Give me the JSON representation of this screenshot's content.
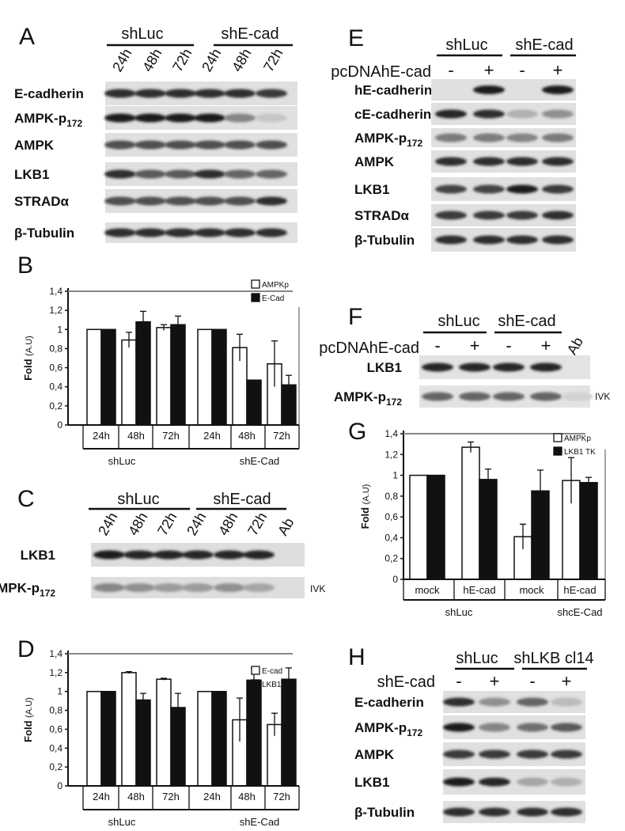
{
  "panels": {
    "A": {
      "letter": "A",
      "groups": [
        "shLuc",
        "shE-cad"
      ],
      "timepoints": [
        "24h",
        "48h",
        "72h",
        "24h",
        "48h",
        "72h"
      ],
      "rows": [
        {
          "label": "E-cadherin",
          "intensity": [
            0.85,
            0.85,
            0.85,
            0.85,
            0.85,
            0.8
          ]
        },
        {
          "label": "AMPK-p",
          "sub": "172",
          "intensity": [
            0.95,
            0.95,
            0.95,
            0.95,
            0.45,
            0.15
          ]
        },
        {
          "label": "AMPK",
          "intensity": [
            0.7,
            0.7,
            0.7,
            0.7,
            0.7,
            0.7
          ]
        },
        {
          "label": "LKB1",
          "intensity": [
            0.85,
            0.65,
            0.65,
            0.85,
            0.6,
            0.6
          ]
        },
        {
          "label": "STRADα",
          "intensity": [
            0.7,
            0.7,
            0.7,
            0.7,
            0.7,
            0.85
          ]
        },
        {
          "label": "β-Tubulin",
          "intensity": [
            0.85,
            0.85,
            0.85,
            0.85,
            0.85,
            0.85
          ]
        }
      ]
    },
    "C": {
      "letter": "C",
      "groups": [
        "shLuc",
        "shE-cad"
      ],
      "timepoints": [
        "24h",
        "48h",
        "72h",
        "24h",
        "48h",
        "72h",
        "Ab"
      ],
      "rows": [
        {
          "label": "LKB1",
          "intensity": [
            0.95,
            0.9,
            0.9,
            0.9,
            0.9,
            0.9,
            0
          ]
        },
        {
          "label": "AMPK-p",
          "sub": "172",
          "intensity": [
            0.45,
            0.4,
            0.35,
            0.35,
            0.4,
            0.3,
            0
          ]
        }
      ],
      "side_label": "IVK"
    },
    "E": {
      "letter": "E",
      "groups": [
        "shLuc",
        "shE-cad"
      ],
      "treatment": "pcDNAhE-cad",
      "signs": [
        "-",
        "+",
        "-",
        "+"
      ],
      "rows": [
        {
          "label": "hE-cadherin",
          "intensity": [
            0,
            0.95,
            0,
            0.95
          ]
        },
        {
          "label": "cE-cadherin",
          "intensity": [
            0.9,
            0.85,
            0.25,
            0.4
          ]
        },
        {
          "label": "AMPK-p",
          "sub": "172",
          "intensity": [
            0.5,
            0.5,
            0.45,
            0.5
          ]
        },
        {
          "label": "AMPK",
          "intensity": [
            0.85,
            0.85,
            0.85,
            0.85
          ]
        },
        {
          "label": "LKB1",
          "intensity": [
            0.75,
            0.75,
            0.95,
            0.8
          ]
        },
        {
          "label": "STRADα",
          "intensity": [
            0.8,
            0.8,
            0.8,
            0.85
          ]
        },
        {
          "label": "β-Tubulin",
          "intensity": [
            0.85,
            0.85,
            0.85,
            0.85
          ]
        }
      ]
    },
    "F": {
      "letter": "F",
      "groups": [
        "shLuc",
        "shE-cad"
      ],
      "treatment": "pcDNAhE-cad",
      "signs": [
        "-",
        "+",
        "-",
        "+"
      ],
      "ab_label": "Ab",
      "rows": [
        {
          "label": "LKB1",
          "intensity": [
            0.9,
            0.9,
            0.9,
            0.9,
            0
          ]
        },
        {
          "label": "AMPK-p",
          "sub": "172",
          "intensity": [
            0.6,
            0.6,
            0.6,
            0.6,
            0.1
          ]
        }
      ],
      "side_label": "IVK"
    },
    "H": {
      "letter": "H",
      "groups": [
        "shLuc",
        "shLKB cl14"
      ],
      "treatment": "shE-cad",
      "signs": [
        "-",
        "+",
        "-",
        "+"
      ],
      "rows": [
        {
          "label": "E-cadherin",
          "intensity": [
            0.85,
            0.4,
            0.6,
            0.2
          ]
        },
        {
          "label": "AMPK-p",
          "sub": "172",
          "intensity": [
            0.95,
            0.45,
            0.55,
            0.65
          ]
        },
        {
          "label": "AMPK",
          "intensity": [
            0.8,
            0.8,
            0.8,
            0.8
          ]
        },
        {
          "label": "LKB1",
          "intensity": [
            0.95,
            0.9,
            0.3,
            0.25
          ]
        },
        {
          "label": "β-Tubulin",
          "intensity": [
            0.85,
            0.85,
            0.85,
            0.85
          ]
        }
      ]
    }
  },
  "chart_data": [
    {
      "panel": "B",
      "type": "bar",
      "ylabel": "Fold (A.U)",
      "ylim": [
        0,
        1.4
      ],
      "yticks": [
        "0",
        "0,2",
        "0,4",
        "0,6",
        "0,8",
        "1",
        "1,2",
        "1,4"
      ],
      "categories": [
        "24h",
        "48h",
        "72h",
        "24h",
        "48h",
        "72h"
      ],
      "groups": [
        "shLuc",
        "shE-Cad"
      ],
      "series": [
        {
          "name": "AMPKp",
          "color": "#ffffff",
          "values": [
            1.0,
            0.89,
            1.02,
            1.0,
            0.81,
            0.64
          ],
          "errors": [
            0,
            0.08,
            0.03,
            0,
            0.14,
            0.24
          ]
        },
        {
          "name": "E-Cad",
          "color": "#111111",
          "values": [
            1.0,
            1.08,
            1.05,
            1.0,
            0.47,
            0.42
          ],
          "errors": [
            0,
            0.11,
            0.09,
            0,
            0,
            0.1
          ]
        }
      ],
      "legend": "top-right"
    },
    {
      "panel": "D",
      "type": "bar",
      "ylabel": "Fold (A.U)",
      "ylim": [
        0,
        1.4
      ],
      "yticks": [
        "0",
        "0,2",
        "0,4",
        "0,6",
        "0,8",
        "1",
        "1,2",
        "1,4"
      ],
      "categories": [
        "24h",
        "48h",
        "72h",
        "24h",
        "48h",
        "72h"
      ],
      "groups": [
        "shLuc",
        "shE-Cad"
      ],
      "series": [
        {
          "name": "E-cad",
          "color": "#ffffff",
          "values": [
            1.0,
            1.2,
            1.13,
            1.0,
            0.7,
            0.65
          ],
          "errors": [
            0,
            0.01,
            0.01,
            0,
            0.23,
            0.12
          ]
        },
        {
          "name": "LKB1 TK",
          "color": "#111111",
          "values": [
            1.0,
            0.91,
            0.83,
            1.0,
            1.12,
            1.13
          ],
          "errors": [
            0,
            0.07,
            0.15,
            0,
            0.13,
            0.12
          ]
        }
      ],
      "legend": "top-right"
    },
    {
      "panel": "G",
      "type": "bar",
      "ylabel": "Fold (A.U)",
      "ylim": [
        0,
        1.4
      ],
      "yticks": [
        "0",
        "0,2",
        "0,4",
        "0,6",
        "0,8",
        "1",
        "1,2",
        "1,4"
      ],
      "categories": [
        "mock",
        "hE-cad",
        "mock",
        "hE-cad"
      ],
      "groups": [
        "shLuc",
        "shcE-Cad"
      ],
      "series": [
        {
          "name": "AMPKp",
          "color": "#ffffff",
          "values": [
            1.0,
            1.27,
            0.41,
            0.95
          ],
          "errors": [
            0,
            0.05,
            0.12,
            0.22
          ]
        },
        {
          "name": "LKB1 TK",
          "color": "#111111",
          "values": [
            1.0,
            0.96,
            0.85,
            0.93
          ],
          "errors": [
            0,
            0.1,
            0.2,
            0.05
          ]
        }
      ],
      "legend": "top-right"
    }
  ]
}
